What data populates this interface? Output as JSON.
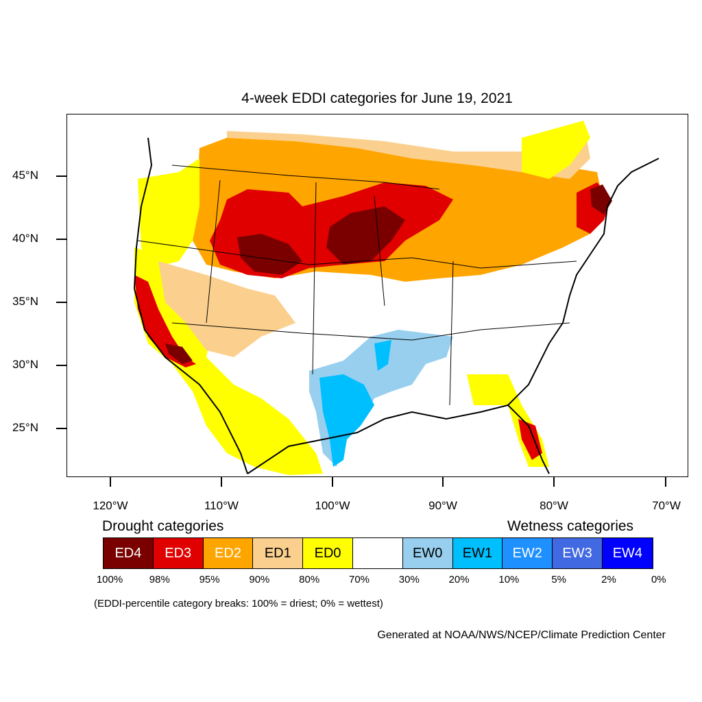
{
  "title": "4-week EDDI categories for June 19, 2021",
  "map": {
    "lat_labels": [
      "45°N",
      "40°N",
      "35°N",
      "30°N",
      "25°N"
    ],
    "lon_labels": [
      "120°W",
      "110°W",
      "100°W",
      "90°W",
      "80°W",
      "70°W"
    ]
  },
  "legend": {
    "drought_heading": "Drought categories",
    "wetness_heading": "Wetness categories",
    "categories": [
      {
        "label": "ED4",
        "color": "#7a0000",
        "text_color": "#ffffff"
      },
      {
        "label": "ED3",
        "color": "#e10000",
        "text_color": "#ffffff"
      },
      {
        "label": "ED2",
        "color": "#ffa500",
        "text_color": "#ffffff"
      },
      {
        "label": "ED1",
        "color": "#fbd08e",
        "text_color": "#000000"
      },
      {
        "label": "ED0",
        "color": "#ffff00",
        "text_color": "#000000"
      },
      {
        "label": "",
        "color": "#ffffff",
        "text_color": "#000000"
      },
      {
        "label": "EW0",
        "color": "#98cfee",
        "text_color": "#000000"
      },
      {
        "label": "EW1",
        "color": "#00bfff",
        "text_color": "#000000"
      },
      {
        "label": "EW2",
        "color": "#1e90ff",
        "text_color": "#ffffff"
      },
      {
        "label": "EW3",
        "color": "#4169e1",
        "text_color": "#ffffff"
      },
      {
        "label": "EW4",
        "color": "#0000ff",
        "text_color": "#ffffff"
      }
    ],
    "breaks": [
      "100%",
      "98%",
      "95%",
      "90%",
      "80%",
      "70%",
      "30%",
      "20%",
      "10%",
      "5%",
      "2%",
      "0%"
    ]
  },
  "note": "(EDDI-percentile category breaks: 100% = driest; 0% = wettest)",
  "credit": "Generated at NOAA/NWS/NCEP/Climate Prediction Center"
}
